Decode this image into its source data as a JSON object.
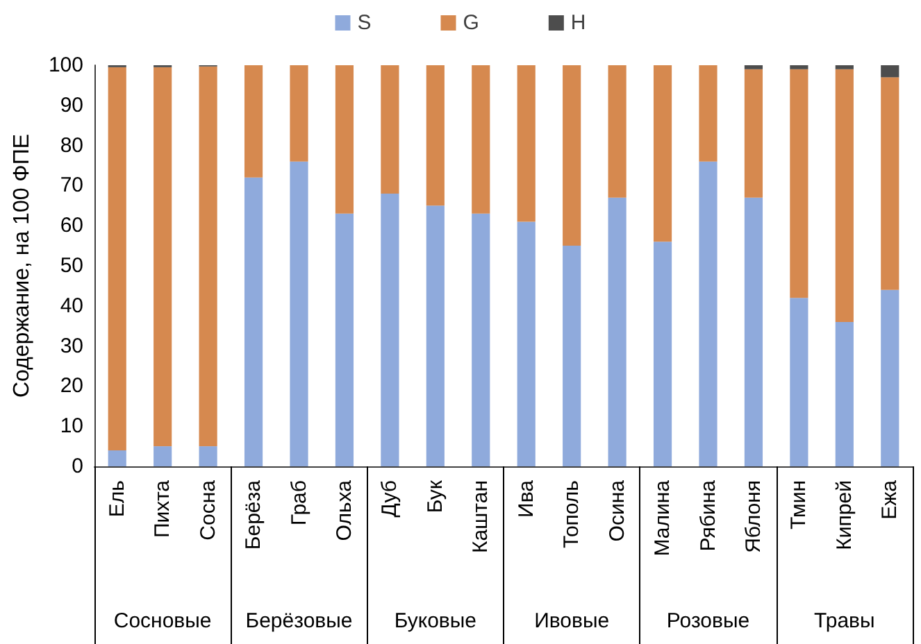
{
  "chart_data": {
    "type": "bar",
    "stacked": true,
    "ylabel": "Содержание, на 100 ФПЕ",
    "categories": [
      "Ель",
      "Пихта",
      "Сосна",
      "Берёза",
      "Граб",
      "Ольха",
      "Дуб",
      "Бук",
      "Каштан",
      "Ива",
      "Тополь",
      "Осина",
      "Малина",
      "Рябина",
      "Яблоня",
      "Тмин",
      "Кипрей",
      "Ежа"
    ],
    "annotations": [
      "Сосновые",
      "Берёзовые",
      "Буковые",
      "Ивовые",
      "Розовые",
      "Травы"
    ],
    "series": [
      {
        "name": "S",
        "color": "#8faadc",
        "values": [
          4,
          5,
          5,
          72,
          76,
          63,
          68,
          65,
          63,
          61,
          55,
          67,
          56,
          76,
          67,
          42,
          36,
          44
        ]
      },
      {
        "name": "G",
        "color": "#d6894f",
        "values": [
          95.5,
          94.5,
          94.7,
          28,
          24,
          37,
          32,
          35,
          37,
          39,
          45,
          33,
          44,
          24,
          32,
          57,
          63,
          53
        ]
      },
      {
        "name": "H",
        "color": "#4d4d4d",
        "values": [
          0.5,
          0.5,
          0.3,
          0,
          0,
          0,
          0,
          0,
          0,
          0,
          0,
          0,
          0,
          0,
          1,
          1,
          1,
          3
        ]
      }
    ],
    "ylim": [
      0,
      100
    ],
    "yticks": [
      0,
      10,
      20,
      30,
      40,
      50,
      60,
      70,
      80,
      90,
      100
    ],
    "grid": false,
    "legend": "top"
  }
}
